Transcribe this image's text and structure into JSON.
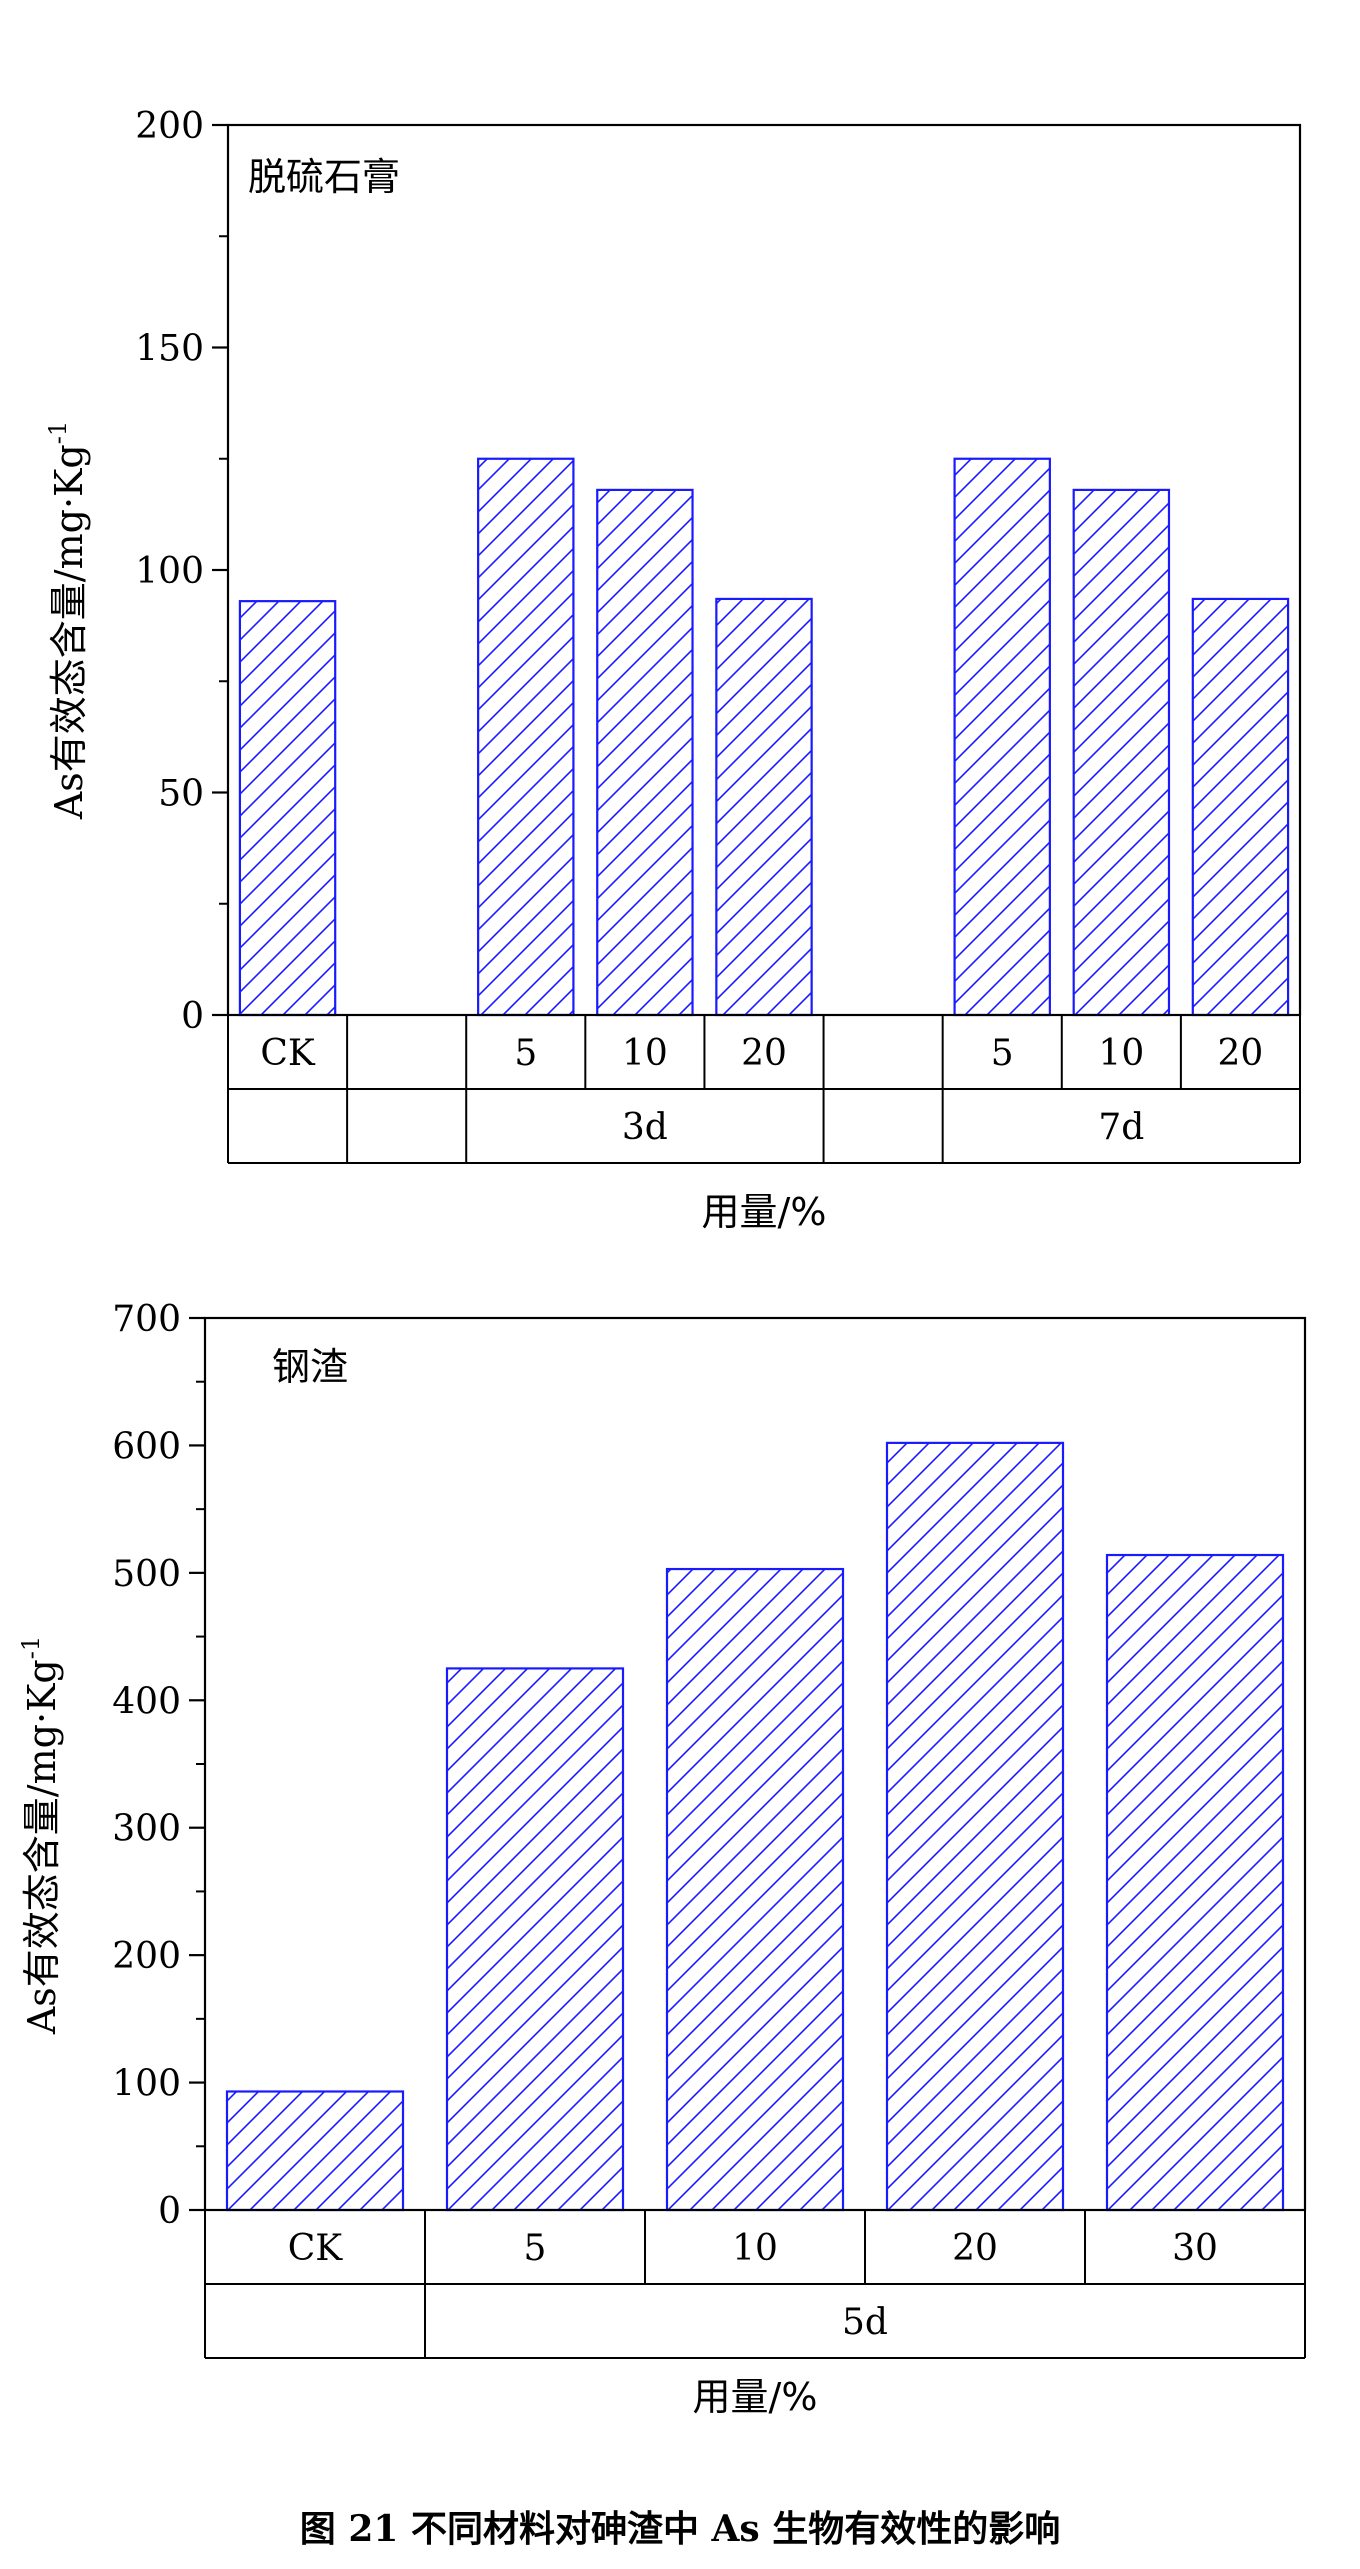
{
  "colors": {
    "bar_stroke": "#1a1aff",
    "hatch": "#1a1aff",
    "axis": "#000000"
  },
  "charts": [
    {
      "type": "bar",
      "title": "脱硫石膏",
      "ylabel": "As有效态含量/mg·Kg",
      "ylabel_sup": "-1",
      "xlabel": "用量/%",
      "ylim": [
        0,
        200
      ],
      "yticks": [
        "0",
        "50",
        "100",
        "150",
        "200"
      ],
      "slots": [
        "CK",
        "",
        "5",
        "10",
        "20",
        "",
        "5",
        "10",
        "20"
      ],
      "values": [
        93,
        null,
        125,
        118,
        93.5,
        null,
        125,
        118,
        93.5
      ],
      "groups": [
        {
          "label": "",
          "from": 0,
          "to": 0
        },
        {
          "label": "",
          "from": 1,
          "to": 1
        },
        {
          "label": "3d",
          "from": 2,
          "to": 4
        },
        {
          "label": "",
          "from": 5,
          "to": 5
        },
        {
          "label": "7d",
          "from": 6,
          "to": 8
        }
      ]
    },
    {
      "type": "bar",
      "title": "钢渣",
      "ylabel": "As有效态含量/mg·Kg",
      "ylabel_sup": "-1",
      "xlabel": "用量/%",
      "ylim": [
        0,
        700
      ],
      "yticks": [
        "0",
        "100",
        "200",
        "300",
        "400",
        "500",
        "600",
        "700"
      ],
      "slots": [
        "CK",
        "5",
        "10",
        "20",
        "30"
      ],
      "values": [
        93,
        425,
        503,
        602,
        514
      ],
      "groups": [
        {
          "label": "",
          "from": 0,
          "to": 0
        },
        {
          "label": "5d",
          "from": 1,
          "to": 4
        }
      ]
    }
  ],
  "caption": "图 21 不同材料对砷渣中 As 生物有效性的影响"
}
